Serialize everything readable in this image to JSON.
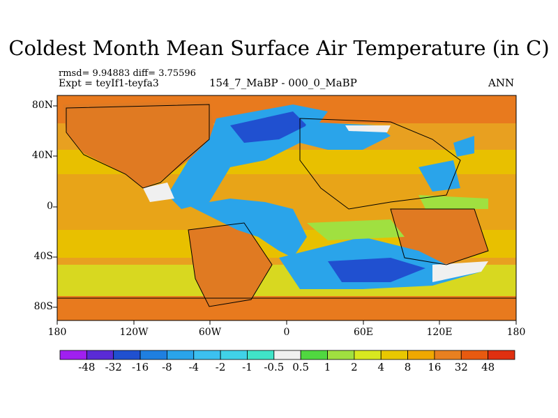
{
  "title": "Coldest Month Mean Surface Air Temperature (in C)",
  "stats": {
    "rmsd_diff": "rmsd= 9.94883 diff= 3.75596",
    "experiment": "Expt = teyIf1-teyfa3",
    "comparison": "154_7_MaBP - 000_0_MaBP",
    "season": "ANN"
  },
  "axes": {
    "x_ticks": [
      "180",
      "120W",
      "60W",
      "0",
      "60E",
      "120E",
      "180"
    ],
    "y_ticks": [
      "80N",
      "40N",
      "0",
      "40S",
      "80S"
    ]
  },
  "colorbar": {
    "labels": [
      "-48",
      "-32",
      "-16",
      "-8",
      "-4",
      "-2",
      "-1",
      "-0.5",
      "0.5",
      "1",
      "2",
      "4",
      "8",
      "16",
      "32",
      "48"
    ],
    "colors": [
      "#a020f0",
      "#5a2bd6",
      "#2050d0",
      "#1f7fe0",
      "#2aa4ea",
      "#3cc0f0",
      "#40d2e8",
      "#40e4c8",
      "#f0f0f0",
      "#50d840",
      "#a0e040",
      "#d8e820",
      "#e8c800",
      "#f0a800",
      "#e88020",
      "#e85a10",
      "#e03010"
    ]
  },
  "map_colors": {
    "ocean_warm": "#e8a020",
    "ocean_mid": "#e8c200",
    "land_warm": "#e07a22",
    "cold_blue": "#2aa4ea",
    "deep_blue": "#2050d0",
    "frame": "#000000"
  }
}
